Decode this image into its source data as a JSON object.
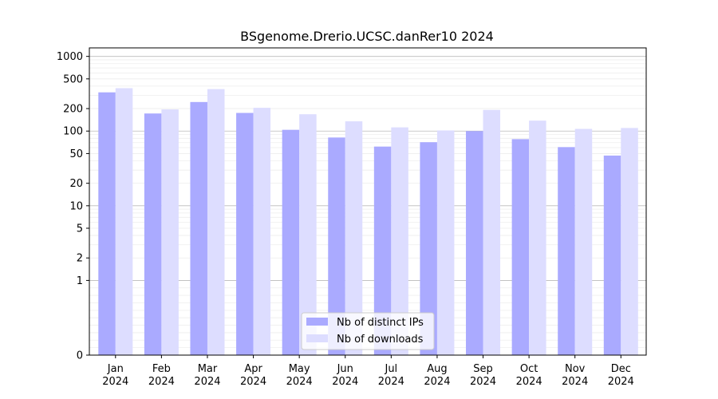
{
  "chart_data": {
    "type": "bar",
    "title": "BSgenome.Drerio.UCSC.danRer10 2024",
    "xlabel": "",
    "ylabel": "",
    "yscale": "symlog",
    "ylim": [
      0,
      1300
    ],
    "yticks": [
      {
        "value": 0,
        "label": "0"
      },
      {
        "value": 1,
        "label": "1"
      },
      {
        "value": 2,
        "label": "2"
      },
      {
        "value": 5,
        "label": "5"
      },
      {
        "value": 10,
        "label": "10"
      },
      {
        "value": 20,
        "label": "20"
      },
      {
        "value": 50,
        "label": "50"
      },
      {
        "value": 100,
        "label": "100"
      },
      {
        "value": 200,
        "label": "200"
      },
      {
        "value": 500,
        "label": "500"
      },
      {
        "value": 1000,
        "label": "1000"
      }
    ],
    "categories": [
      {
        "month": "Jan",
        "year": "2024"
      },
      {
        "month": "Feb",
        "year": "2024"
      },
      {
        "month": "Mar",
        "year": "2024"
      },
      {
        "month": "Apr",
        "year": "2024"
      },
      {
        "month": "May",
        "year": "2024"
      },
      {
        "month": "Jun",
        "year": "2024"
      },
      {
        "month": "Jul",
        "year": "2024"
      },
      {
        "month": "Aug",
        "year": "2024"
      },
      {
        "month": "Sep",
        "year": "2024"
      },
      {
        "month": "Oct",
        "year": "2024"
      },
      {
        "month": "Nov",
        "year": "2024"
      },
      {
        "month": "Dec",
        "year": "2024"
      }
    ],
    "series": [
      {
        "name": "Nb of distinct IPs",
        "color": "#aaaaff",
        "values": [
          330,
          172,
          245,
          175,
          104,
          82,
          62,
          71,
          100,
          78,
          61,
          47
        ]
      },
      {
        "name": "Nb of downloads",
        "color": "#ddddff",
        "values": [
          375,
          195,
          365,
          205,
          168,
          135,
          112,
          102,
          192,
          138,
          107,
          110
        ]
      }
    ],
    "grid": true,
    "legend_position": "bottom-center"
  }
}
